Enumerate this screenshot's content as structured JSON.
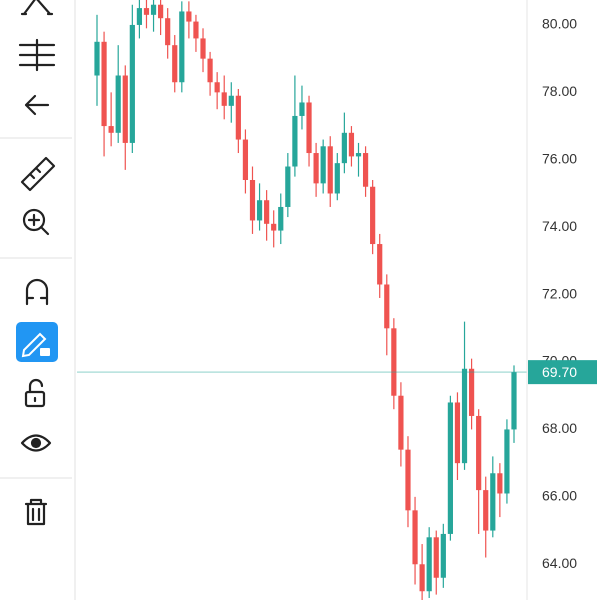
{
  "chart_data": {
    "type": "candlestick",
    "up_color": "#26a69a",
    "down_color": "#ef5350",
    "open": [
      78.5,
      79.5,
      77.0,
      76.8,
      78.5,
      76.5,
      80.0,
      80.5,
      80.3,
      80.6,
      80.2,
      79.4,
      78.3,
      80.4,
      80.1,
      79.6,
      79.0,
      78.3,
      78.0,
      77.6,
      77.9,
      76.6,
      75.4,
      74.2,
      74.8,
      74.1,
      73.9,
      74.6,
      75.8,
      77.3,
      77.7,
      76.2,
      75.3,
      76.4,
      75.0,
      75.9,
      76.8,
      76.1,
      76.2,
      75.2,
      73.5,
      72.3,
      71.0,
      69.0,
      67.4,
      65.6,
      64.0,
      63.2,
      64.8,
      63.6,
      64.9,
      68.8,
      67.0,
      69.8,
      68.4,
      66.2,
      65.0,
      66.7,
      66.1,
      68.0
    ],
    "high": [
      80.3,
      79.8,
      78.0,
      79.4,
      78.8,
      80.6,
      80.8,
      80.8,
      80.9,
      80.8,
      80.5,
      79.7,
      80.7,
      80.7,
      80.3,
      79.9,
      79.2,
      78.6,
      78.5,
      78.3,
      78.1,
      76.9,
      75.8,
      75.3,
      75.1,
      74.5,
      75.0,
      76.2,
      78.5,
      78.2,
      77.9,
      76.5,
      76.6,
      76.7,
      76.2,
      77.4,
      77.0,
      76.5,
      76.4,
      75.4,
      73.8,
      72.6,
      71.3,
      69.4,
      67.8,
      66.0,
      64.6,
      65.1,
      65.0,
      65.2,
      69.0,
      69.1,
      71.2,
      70.1,
      68.6,
      66.6,
      67.2,
      67.0,
      68.3,
      69.9
    ],
    "low": [
      77.6,
      76.1,
      76.4,
      76.5,
      75.7,
      76.2,
      79.6,
      79.9,
      79.8,
      79.7,
      79.0,
      78.0,
      78.0,
      79.6,
      79.2,
      78.6,
      77.9,
      77.5,
      77.2,
      77.1,
      76.2,
      75.0,
      73.8,
      73.9,
      73.6,
      73.4,
      73.5,
      74.3,
      75.5,
      76.9,
      75.8,
      74.9,
      75.0,
      74.6,
      74.8,
      75.6,
      75.8,
      75.5,
      74.9,
      73.2,
      71.9,
      70.2,
      68.6,
      66.9,
      65.1,
      63.4,
      62.9,
      63.0,
      63.1,
      63.3,
      64.7,
      66.5,
      66.8,
      68.0,
      64.9,
      64.2,
      64.8,
      65.4,
      65.8,
      67.6
    ],
    "close": [
      79.5,
      77.0,
      76.8,
      78.5,
      76.5,
      80.0,
      80.5,
      80.3,
      80.6,
      80.2,
      79.4,
      78.3,
      80.4,
      80.1,
      79.6,
      79.0,
      78.3,
      78.0,
      77.6,
      77.9,
      76.6,
      75.4,
      74.2,
      74.8,
      74.1,
      73.9,
      74.6,
      75.8,
      77.3,
      77.7,
      76.2,
      75.3,
      76.4,
      75.0,
      75.9,
      76.8,
      76.1,
      76.2,
      75.2,
      73.5,
      72.3,
      71.0,
      69.0,
      67.4,
      65.6,
      64.0,
      63.2,
      64.8,
      63.6,
      64.9,
      68.8,
      67.0,
      69.8,
      68.4,
      66.2,
      65.0,
      66.7,
      66.1,
      68.0,
      69.7
    ],
    "ylim": [
      62.94,
      80.74
    ],
    "yticks": [
      {
        "value": 64,
        "label": "64.00"
      },
      {
        "value": 66,
        "label": "66.00"
      },
      {
        "value": 68,
        "label": "68.00"
      },
      {
        "value": 70,
        "label": "70.00"
      },
      {
        "value": 72,
        "label": "72.00"
      },
      {
        "value": 74,
        "label": "74.00"
      },
      {
        "value": 76,
        "label": "76.00"
      },
      {
        "value": 78,
        "label": "78.00"
      },
      {
        "value": 80,
        "label": "80.00"
      }
    ],
    "last_price": {
      "value": 69.7,
      "label": "69.70"
    },
    "last_price_color": "#26a69a"
  }
}
